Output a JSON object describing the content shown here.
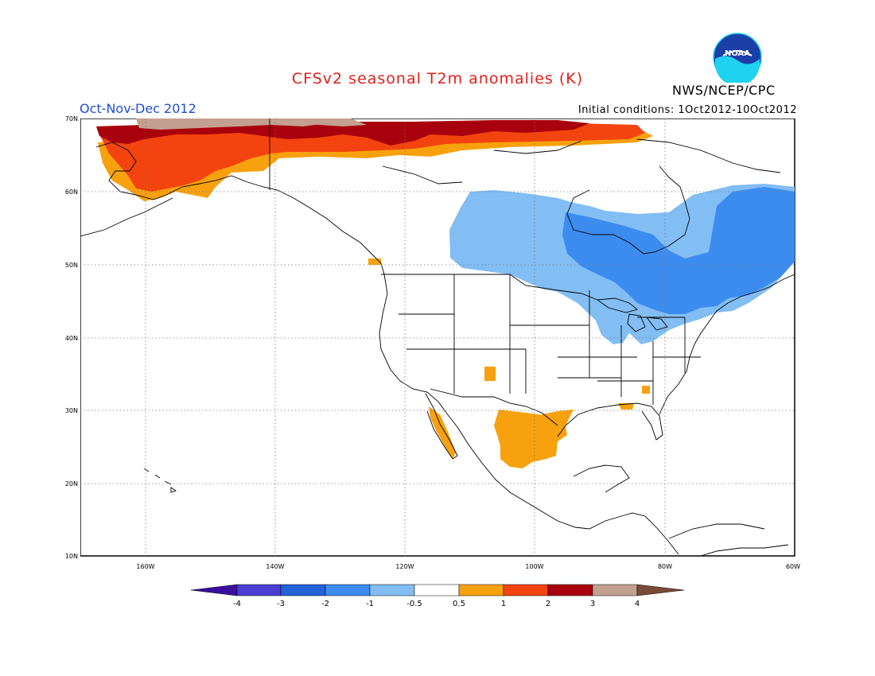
{
  "header": {
    "title": "CFSv2 seasonal T2m anomalies (K)",
    "season": "Oct-Nov-Dec 2012",
    "initial_conditions": "Initial conditions: 1Oct2012-10Oct2012",
    "organization": "NWS/NCEP/CPC",
    "logo_text": "NOAA"
  },
  "map": {
    "lat_labels": [
      "70N",
      "60N",
      "50N",
      "40N",
      "30N",
      "20N",
      "10N"
    ],
    "lon_labels": [
      "160W",
      "140W",
      "120W",
      "100W",
      "80W",
      "60W"
    ],
    "extent": {
      "lon_min": -171,
      "lon_max": -60,
      "lat_min": 10,
      "lat_max": 70
    }
  },
  "colorbar": {
    "tick_labels": [
      "-4",
      "-3",
      "-2",
      "-1",
      "-0.5",
      "0.5",
      "1",
      "2",
      "3",
      "4"
    ],
    "colors": {
      "below_-4": "#3a0fa0",
      "-4_-3": "#4a3fd0",
      "-3_-2": "#2462d8",
      "-2_-1": "#3c8cf0",
      "-1_-0.5": "#82bdf4",
      "-0.5_0.5": "#ffffff",
      "0.5_1": "#f8a10e",
      "1_2": "#f3440f",
      "2_3": "#a8000c",
      "3_4": "#c4a090",
      "above_4": "#7a4a38"
    }
  }
}
